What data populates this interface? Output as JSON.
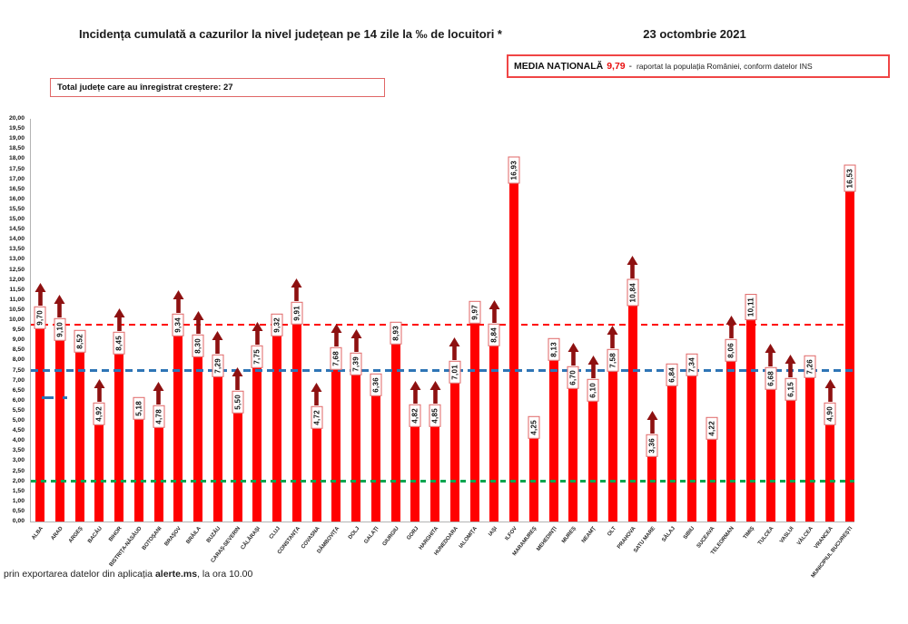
{
  "page": {
    "title": "Incidența cumulată a cazurilor la nivel județean pe 14 zile la ‰ de locuitori *",
    "date": "23 octombrie 2021",
    "media_box": {
      "label": "MEDIA NAȚIONALĂ",
      "value": "9,79",
      "separator": "-",
      "description": "raportat la populația României, conform datelor INS"
    },
    "total_box": "Total județe care au înregistrat creștere:  27",
    "footer": {
      "prefix": "prin exportarea datelor din aplicația ",
      "app": "alerte.ms",
      "suffix": ", la ora 10.00"
    }
  },
  "chart_data": {
    "type": "bar",
    "title": "Incidența cumulată a cazurilor la nivel județean pe 14 zile la ‰ de locuitori *",
    "xlabel": "",
    "ylabel": "",
    "ylim": [
      0,
      20
    ],
    "ytick_step": 0.5,
    "decimal_style": "comma",
    "grid": "off",
    "bar_color": "#ff0000",
    "arrow_color": "#8e1111",
    "label_box_border": "#e06666",
    "categories": [
      "ALBA",
      "ARAD",
      "ARGEȘ",
      "BACĂU",
      "BIHOR",
      "BISTRIȚA-NĂSĂUD",
      "BOTOȘANI",
      "BRAȘOV",
      "BRĂILA",
      "BUZĂU",
      "CARAȘ-SEVERIN",
      "CĂLĂRAȘI",
      "CLUJ",
      "CONSTANȚA",
      "COVASNA",
      "DÂMBOVIȚA",
      "DOLJ",
      "GALAȚI",
      "GIURGIU",
      "GORJ",
      "HARGHITA",
      "HUNEDOARA",
      "IALOMIȚA",
      "IAȘI",
      "ILFOV",
      "MARAMUREȘ",
      "MEHEDINȚI",
      "MUREȘ",
      "NEAMȚ",
      "OLT",
      "PRAHOVA",
      "SATU MARE",
      "SĂLAJ",
      "SIBIU",
      "SUCEAVA",
      "TELEORMAN",
      "TIMIȘ",
      "TULCEA",
      "VASLUI",
      "VÂLCEA",
      "VRANCEA",
      "MUNICIPIUL BUCUREȘTI"
    ],
    "values": [
      9.7,
      9.1,
      8.52,
      4.92,
      8.45,
      5.18,
      4.78,
      9.34,
      8.3,
      7.29,
      5.5,
      7.75,
      9.32,
      9.91,
      4.72,
      7.68,
      7.39,
      6.36,
      8.93,
      4.82,
      4.85,
      7.01,
      9.97,
      8.84,
      16.93,
      4.25,
      8.13,
      6.7,
      6.1,
      7.58,
      10.84,
      3.36,
      6.84,
      7.34,
      4.22,
      8.06,
      10.11,
      6.68,
      6.15,
      7.26,
      4.9,
      16.53
    ],
    "value_labels": [
      "9,70",
      "9,10",
      "8,52",
      "4,92",
      "8,45",
      "5,18",
      "4,78",
      "9,34",
      "8,30",
      "7,29",
      "5,50",
      "7,75",
      "9,32",
      "9,91",
      "4,72",
      "7,68",
      "7,39",
      "6,36",
      "8,93",
      "4,82",
      "4,85",
      "7,01",
      "9,97",
      "8,84",
      "16,93",
      "4,25",
      "8,13",
      "6,70",
      "6,10",
      "7,58",
      "10,84",
      "3,36",
      "6,84",
      "7,34",
      "4,22",
      "8,06",
      "10,11",
      "6,68",
      "6,15",
      "7,26",
      "4,90",
      "16,53"
    ],
    "increase": [
      true,
      true,
      false,
      true,
      true,
      false,
      true,
      true,
      true,
      true,
      true,
      true,
      false,
      true,
      true,
      true,
      true,
      false,
      false,
      true,
      true,
      true,
      false,
      true,
      false,
      false,
      false,
      true,
      true,
      true,
      true,
      true,
      false,
      false,
      false,
      true,
      false,
      true,
      true,
      false,
      true,
      false
    ],
    "increase_total": 27,
    "reference_lines": [
      {
        "name": "media-nationala-line",
        "value": 9.79,
        "color": "#ff0000",
        "thickness": 2,
        "dash": 7,
        "gap": 5
      },
      {
        "name": "reference-blue-line",
        "value": 7.5,
        "color": "#2e75b6",
        "thickness": 3,
        "dash": 8,
        "gap": 5
      },
      {
        "name": "reference-green-line",
        "value": 2.0,
        "color": "#00a550",
        "thickness": 2.5,
        "dash": 6,
        "gap": 5
      }
    ]
  }
}
